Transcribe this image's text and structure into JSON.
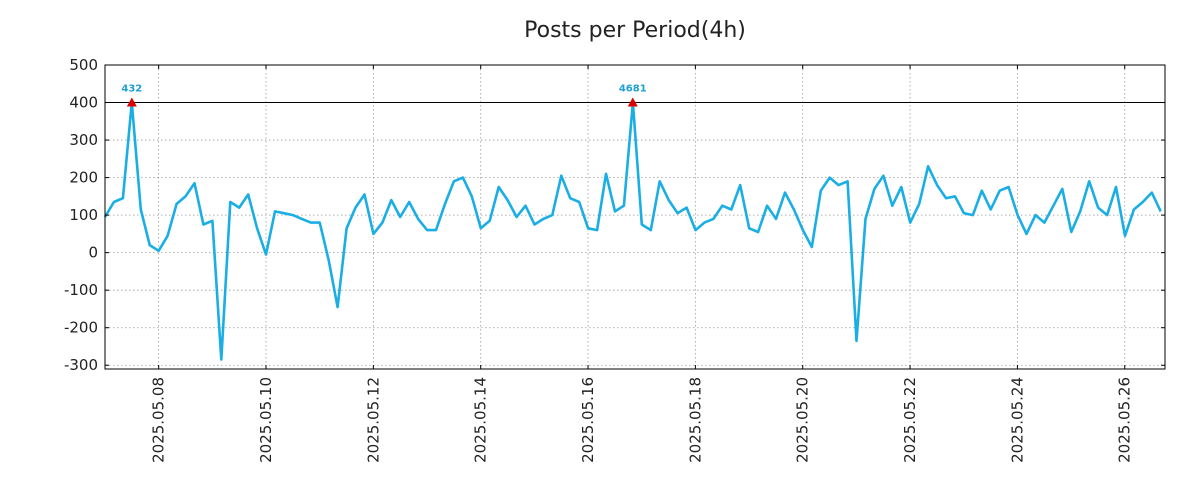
{
  "chart_data": {
    "type": "line",
    "title": "Posts per Period(4h)",
    "xlabel": "",
    "ylabel": "",
    "ylim": [
      -310,
      500
    ],
    "yticks": [
      500,
      400,
      300,
      200,
      100,
      0,
      -100,
      -200,
      -300
    ],
    "xlim_days": [
      7.0,
      26.75
    ],
    "xticks": [
      {
        "label": "2025.05.08",
        "day": 8
      },
      {
        "label": "2025.05.10",
        "day": 10
      },
      {
        "label": "2025.05.12",
        "day": 12
      },
      {
        "label": "2025.05.14",
        "day": 14
      },
      {
        "label": "2025.05.16",
        "day": 16
      },
      {
        "label": "2025.05.18",
        "day": 18
      },
      {
        "label": "2025.05.20",
        "day": 20
      },
      {
        "label": "2025.05.22",
        "day": 22
      },
      {
        "label": "2025.05.24",
        "day": 24
      },
      {
        "label": "2025.05.26",
        "day": 26
      }
    ],
    "threshold": 400,
    "grid": true,
    "colors": {
      "line": "#1aaee5",
      "marker": "#dd0000",
      "annotation": "#1a9fd6",
      "threshold": "#000000"
    },
    "series": [
      {
        "name": "posts",
        "start_day": 7.0,
        "step_days": 0.1667,
        "values": [
          95,
          135,
          145,
          400,
          115,
          20,
          5,
          45,
          130,
          150,
          185,
          75,
          85,
          -285,
          135,
          120,
          155,
          65,
          -5,
          110,
          105,
          100,
          90,
          80,
          80,
          -20,
          -145,
          65,
          120,
          155,
          50,
          80,
          140,
          95,
          135,
          90,
          60,
          60,
          130,
          190,
          200,
          150,
          65,
          85,
          175,
          140,
          95,
          125,
          75,
          90,
          100,
          205,
          145,
          135,
          65,
          60,
          210,
          110,
          125,
          400,
          75,
          60,
          190,
          140,
          105,
          120,
          60,
          80,
          90,
          125,
          115,
          180,
          65,
          55,
          125,
          90,
          160,
          115,
          60,
          15,
          165,
          200,
          180,
          190,
          -235,
          90,
          170,
          205,
          125,
          175,
          80,
          130,
          230,
          180,
          145,
          150,
          105,
          100,
          165,
          115,
          165,
          175,
          100,
          50,
          100,
          80,
          125,
          170,
          55,
          110,
          190,
          120,
          100,
          175,
          45,
          115,
          135,
          160,
          110
        ]
      }
    ],
    "annotations": [
      {
        "label": "432",
        "day": 7.5,
        "value": 400
      },
      {
        "label": "4681",
        "day": 16.8333,
        "value": 400
      }
    ]
  }
}
